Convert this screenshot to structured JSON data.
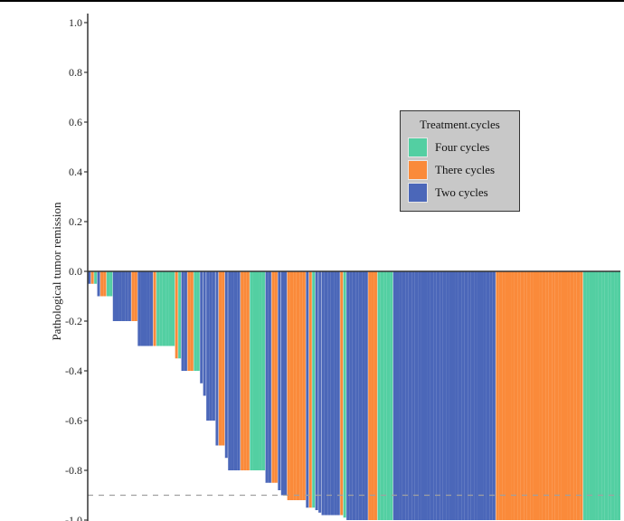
{
  "chart_data": {
    "type": "bar",
    "subtype": "waterfall",
    "title": "",
    "xlabel": "",
    "ylabel": "Pathological tumor remission",
    "ylim": [
      -1.0,
      1.0
    ],
    "yticks": [
      1.0,
      0.8,
      0.6,
      0.4,
      0.2,
      0.0,
      -0.2,
      -0.4,
      -0.6,
      -0.8,
      -1.0
    ],
    "ytick_labels": [
      "1.0",
      "0.8",
      "0.6",
      "0.4",
      "0.2",
      "0.0",
      "-0.2",
      "-0.4",
      "-0.6",
      "-0.8",
      "-1.0"
    ],
    "reference_line": {
      "y": -0.9,
      "style": "dashed"
    },
    "grid": false,
    "legend": {
      "title": "Treatment.cycles",
      "placement": "upper-right-center",
      "entries": [
        {
          "key": "four",
          "label": "Four cycles",
          "color": "#53cfa2"
        },
        {
          "key": "three",
          "label": "There cycles",
          "color": "#fa8a3a"
        },
        {
          "key": "two",
          "label": "Two cycles",
          "color": "#4b67b9"
        }
      ]
    },
    "colors": {
      "four": "#53cfa2",
      "three": "#fa8a3a",
      "two": "#4b67b9"
    },
    "bars": [
      {
        "group": "two",
        "value": -0.05,
        "count": 1
      },
      {
        "group": "three",
        "value": -0.05,
        "count": 1
      },
      {
        "group": "four",
        "value": -0.05,
        "count": 1
      },
      {
        "group": "two",
        "value": -0.1,
        "count": 1
      },
      {
        "group": "three",
        "value": -0.1,
        "count": 2
      },
      {
        "group": "four",
        "value": -0.1,
        "count": 2
      },
      {
        "group": "two",
        "value": -0.2,
        "count": 6
      },
      {
        "group": "three",
        "value": -0.2,
        "count": 2
      },
      {
        "group": "two",
        "value": -0.3,
        "count": 5
      },
      {
        "group": "three",
        "value": -0.3,
        "count": 1
      },
      {
        "group": "four",
        "value": -0.3,
        "count": 6
      },
      {
        "group": "three",
        "value": -0.35,
        "count": 1
      },
      {
        "group": "four",
        "value": -0.35,
        "count": 1
      },
      {
        "group": "two",
        "value": -0.4,
        "count": 2
      },
      {
        "group": "three",
        "value": -0.4,
        "count": 2
      },
      {
        "group": "four",
        "value": -0.4,
        "count": 2
      },
      {
        "group": "two",
        "value": -0.45,
        "count": 1
      },
      {
        "group": "two",
        "value": -0.5,
        "count": 1
      },
      {
        "group": "two",
        "value": -0.6,
        "count": 3
      },
      {
        "group": "two",
        "value": -0.7,
        "count": 1
      },
      {
        "group": "three",
        "value": -0.7,
        "count": 2
      },
      {
        "group": "two",
        "value": -0.75,
        "count": 1
      },
      {
        "group": "two",
        "value": -0.8,
        "count": 4
      },
      {
        "group": "three",
        "value": -0.8,
        "count": 3
      },
      {
        "group": "four",
        "value": -0.8,
        "count": 5
      },
      {
        "group": "two",
        "value": -0.85,
        "count": 2
      },
      {
        "group": "three",
        "value": -0.85,
        "count": 2
      },
      {
        "group": "two",
        "value": -0.88,
        "count": 1
      },
      {
        "group": "two",
        "value": -0.9,
        "count": 2
      },
      {
        "group": "three",
        "value": -0.92,
        "count": 6
      },
      {
        "group": "two",
        "value": -0.95,
        "count": 1
      },
      {
        "group": "three",
        "value": -0.95,
        "count": 1
      },
      {
        "group": "four",
        "value": -0.95,
        "count": 1
      },
      {
        "group": "two",
        "value": -0.96,
        "count": 1
      },
      {
        "group": "two",
        "value": -0.97,
        "count": 1
      },
      {
        "group": "two",
        "value": -0.98,
        "count": 6
      },
      {
        "group": "three",
        "value": -0.98,
        "count": 1
      },
      {
        "group": "four",
        "value": -0.99,
        "count": 1
      },
      {
        "group": "two",
        "value": -1.0,
        "count": 7
      },
      {
        "group": "three",
        "value": -1.0,
        "count": 3
      },
      {
        "group": "four",
        "value": -1.0,
        "count": 5
      },
      {
        "group": "two",
        "value": -1.0,
        "count": 33
      },
      {
        "group": "three",
        "value": -1.0,
        "count": 28
      },
      {
        "group": "four",
        "value": -1.0,
        "count": 12
      }
    ]
  }
}
